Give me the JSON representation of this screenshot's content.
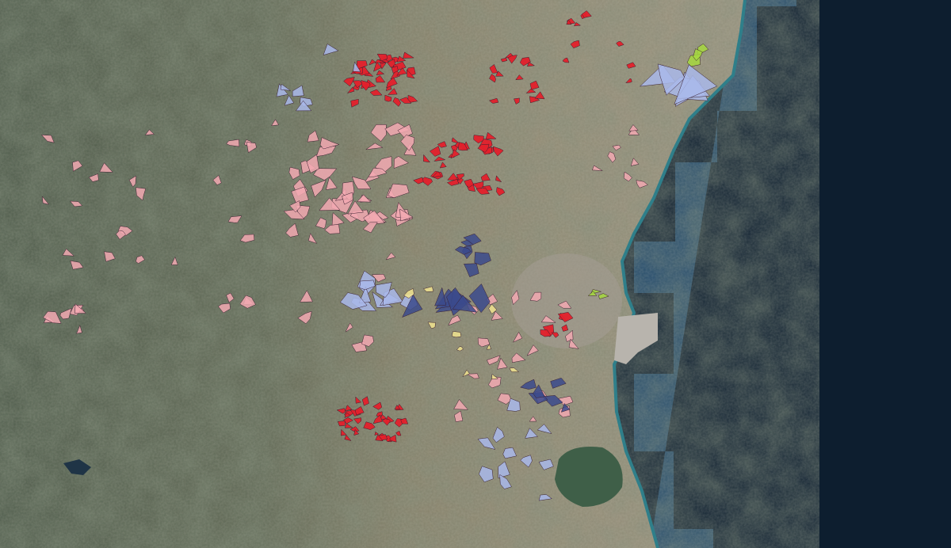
{
  "map": {
    "type": "satellite-imagery",
    "colors": {
      "deep_sea": "#0d1e2f",
      "shallow_sea": "#234a6b",
      "surf": "#2f7f8a",
      "mountains": "#4f5d4a",
      "plains": "#8d8670",
      "urban": "#9a948c",
      "lagoon": "#3f5f48"
    },
    "layers": [
      {
        "id": "red",
        "color": "#e3202b"
      },
      {
        "id": "pink",
        "color": "#f2a9b2"
      },
      {
        "id": "light-blue",
        "color": "#a9b8ea"
      },
      {
        "id": "navy",
        "color": "#3b4a8c"
      },
      {
        "id": "yellow",
        "color": "#f1e48f"
      },
      {
        "id": "lime",
        "color": "#a6d83f"
      }
    ]
  }
}
